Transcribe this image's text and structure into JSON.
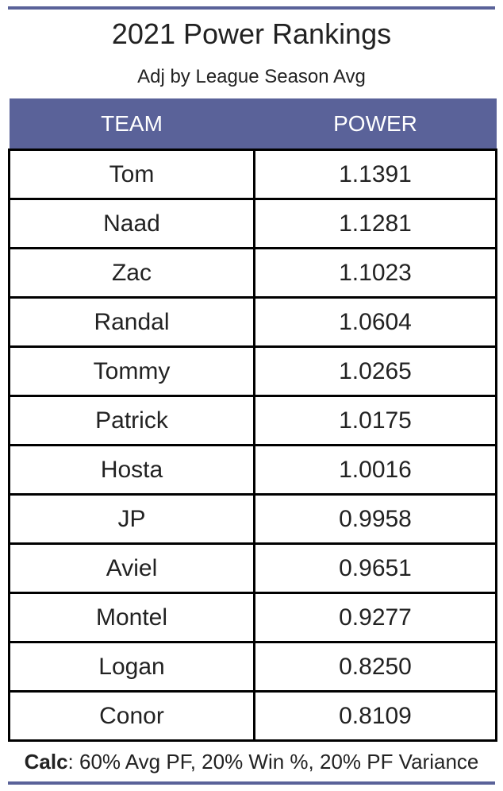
{
  "title": "2021 Power Rankings",
  "subtitle": "Adj by League Season Avg",
  "table": {
    "headers": [
      "TEAM",
      "POWER"
    ],
    "rows": [
      {
        "team": "Tom",
        "power": "1.1391"
      },
      {
        "team": "Naad",
        "power": "1.1281"
      },
      {
        "team": "Zac",
        "power": "1.1023"
      },
      {
        "team": "Randal",
        "power": "1.0604"
      },
      {
        "team": "Tommy",
        "power": "1.0265"
      },
      {
        "team": "Patrick",
        "power": "1.0175"
      },
      {
        "team": "Hosta",
        "power": "1.0016"
      },
      {
        "team": "JP",
        "power": "0.9958"
      },
      {
        "team": "Aviel",
        "power": "0.9651"
      },
      {
        "team": "Montel",
        "power": "0.9277"
      },
      {
        "team": "Logan",
        "power": "0.8250"
      },
      {
        "team": "Conor",
        "power": "0.8109"
      }
    ]
  },
  "footer": {
    "label": "Calc",
    "text": ": 60% Avg PF, 20% Win %, 20% PF Variance"
  },
  "colors": {
    "header_bg": "#5a6299",
    "header_text": "#ffffff",
    "border": "#000000"
  }
}
